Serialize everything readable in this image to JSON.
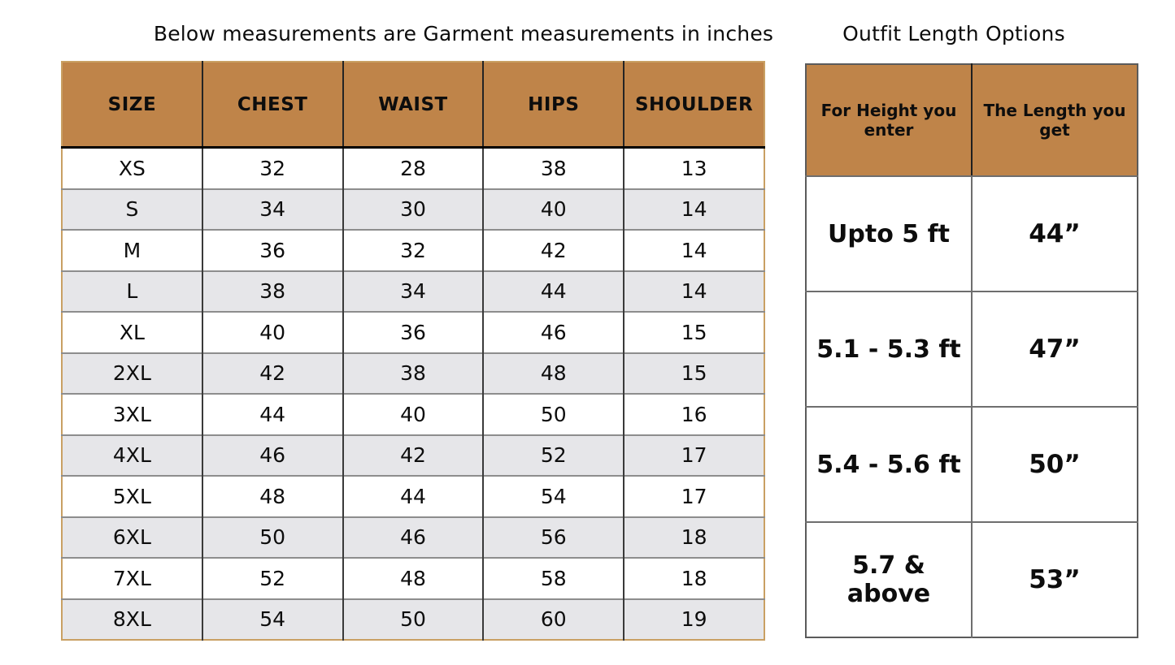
{
  "chart_data": [
    {
      "type": "table",
      "title": "Below measurements are Garment measurements in inches",
      "columns": [
        "SIZE",
        "CHEST",
        "WAIST",
        "HIPS",
        "SHOULDER"
      ],
      "rows": [
        [
          "XS",
          "32",
          "28",
          "38",
          "13"
        ],
        [
          "S",
          "34",
          "30",
          "40",
          "14"
        ],
        [
          "M",
          "36",
          "32",
          "42",
          "14"
        ],
        [
          "L",
          "38",
          "34",
          "44",
          "14"
        ],
        [
          "XL",
          "40",
          "36",
          "46",
          "15"
        ],
        [
          "2XL",
          "42",
          "38",
          "48",
          "15"
        ],
        [
          "3XL",
          "44",
          "40",
          "50",
          "16"
        ],
        [
          "4XL",
          "46",
          "42",
          "52",
          "17"
        ],
        [
          "5XL",
          "48",
          "44",
          "54",
          "17"
        ],
        [
          "6XL",
          "50",
          "46",
          "56",
          "18"
        ],
        [
          "7XL",
          "52",
          "48",
          "58",
          "18"
        ],
        [
          "8XL",
          "54",
          "50",
          "60",
          "19"
        ]
      ],
      "layout_hints": {
        "alternating_row_shading": true,
        "units": "inches"
      }
    },
    {
      "type": "table",
      "title": "Outfit Length Options",
      "columns": [
        "For Height you enter",
        "The Length you get"
      ],
      "rows": [
        [
          "Upto 5 ft",
          "44”"
        ],
        [
          "5.1 - 5.3 ft",
          "47”"
        ],
        [
          "5.4 - 5.6 ft",
          "50”"
        ],
        [
          "5.7 & above",
          "53”"
        ]
      ],
      "layout_hints": {
        "alternating_row_shading": false,
        "units": "inches"
      }
    }
  ],
  "colors": {
    "header_brown": "#bf8449",
    "tan_border": "#c9a063",
    "row_alt_gray": "#e6e6e9",
    "grid_line_gray": "#8d8d8d",
    "dark_line": "#242424",
    "outer_gray": "#5b5b5b"
  }
}
